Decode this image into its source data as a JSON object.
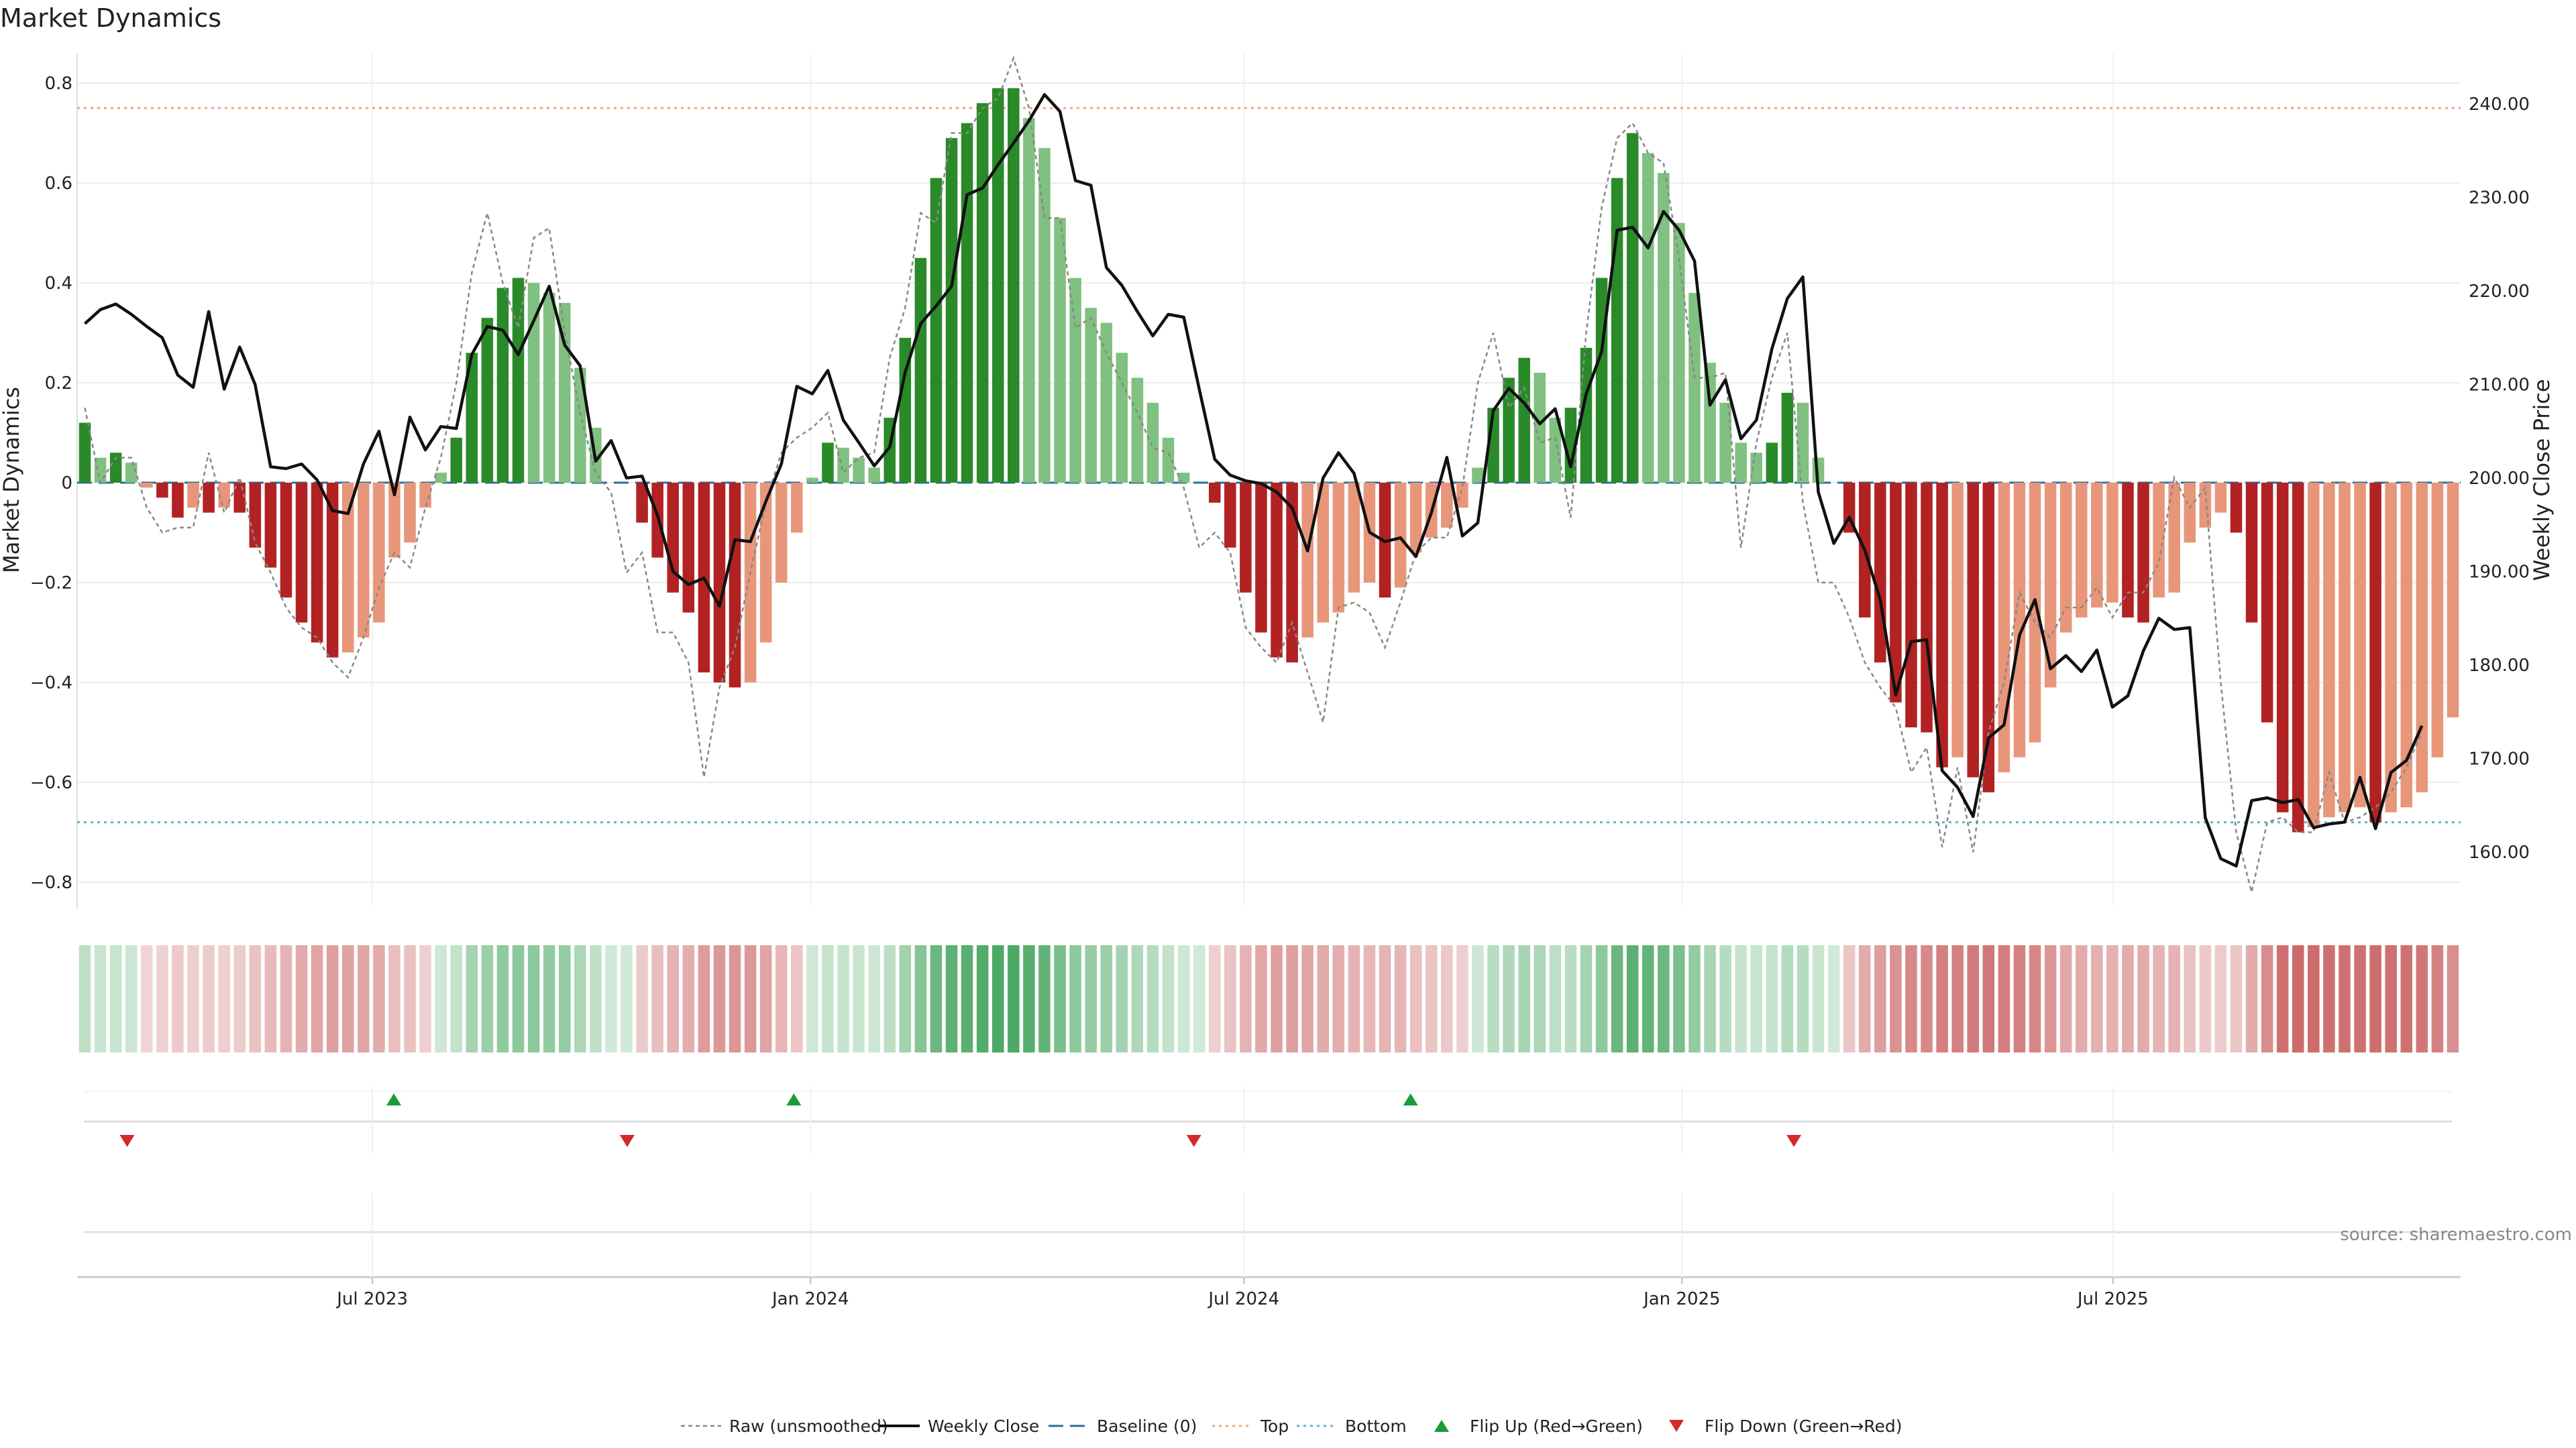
{
  "chart_data": {
    "type": "bar",
    "title": "Market Dynamics",
    "y_left_label": "Market Dynamics",
    "y_right_label": "Weekly Close Price",
    "ylim_left": [
      -0.85,
      0.8
    ],
    "ylim_right": [
      155,
      243
    ],
    "yticks_left": [
      0.8,
      0.6,
      0.4,
      0.2,
      0,
      -0.2,
      -0.4,
      -0.6,
      -0.8
    ],
    "yticks_left_labels": [
      "0.8",
      "0.6",
      "0.4",
      "0.2",
      "0",
      "−0.2",
      "−0.4",
      "−0.6",
      "−0.8"
    ],
    "yticks_right": [
      240,
      230,
      220,
      210,
      200,
      190,
      180,
      170,
      160
    ],
    "yticks_right_labels": [
      "240.00",
      "230.00",
      "220.00",
      "210.00",
      "200.00",
      "190.00",
      "180.00",
      "170.00",
      "160.00"
    ],
    "x_start": "2023-02-27",
    "x_end": "2025-11-24",
    "date_ticks": [
      {
        "date": "2023-07-01",
        "label": "Jul 2023"
      },
      {
        "date": "2024-01-01",
        "label": "Jan 2024"
      },
      {
        "date": "2024-07-01",
        "label": "Jul 2024"
      },
      {
        "date": "2025-01-01",
        "label": "Jan 2025"
      },
      {
        "date": "2025-07-01",
        "label": "Jul 2025"
      }
    ],
    "top_level": 0.75,
    "bottom_level": -0.68,
    "top_color": "#e8a882",
    "bottom_color": "#5bb7cc",
    "baseline_color": "#2a6f97",
    "grid": true,
    "legend_position": "bottom-center",
    "colors": {
      "pos_strong": "#2a8a2a",
      "pos_weak": "#80c080",
      "neg_strong": "#b22222",
      "neg_weak": "#e8967a",
      "close": "#111111",
      "raw": "#888888",
      "flip_up": "#1a9c3a",
      "flip_down": "#d22a2a"
    },
    "mds": [
      0.12,
      0.05,
      0.06,
      0.04,
      -0.01,
      -0.03,
      -0.07,
      -0.05,
      -0.06,
      -0.05,
      -0.06,
      -0.13,
      -0.17,
      -0.23,
      -0.28,
      -0.32,
      -0.35,
      -0.34,
      -0.31,
      -0.28,
      -0.15,
      -0.12,
      -0.05,
      0.02,
      0.09,
      0.26,
      0.33,
      0.39,
      0.41,
      0.4,
      0.38,
      0.36,
      0.23,
      0.11,
      0,
      0,
      -0.08,
      -0.15,
      -0.22,
      -0.26,
      -0.38,
      -0.4,
      -0.41,
      -0.4,
      -0.32,
      -0.2,
      -0.1,
      0.01,
      0.08,
      0.07,
      0.05,
      0.03,
      0.13,
      0.29,
      0.45,
      0.61,
      0.69,
      0.72,
      0.76,
      0.79,
      0.79,
      0.73,
      0.67,
      0.53,
      0.41,
      0.35,
      0.32,
      0.26,
      0.21,
      0.16,
      0.09,
      0.02,
      0,
      -0.04,
      -0.13,
      -0.22,
      -0.3,
      -0.35,
      -0.36,
      -0.31,
      -0.28,
      -0.26,
      -0.22,
      -0.2,
      -0.23,
      -0.21,
      -0.14,
      -0.11,
      -0.09,
      -0.05,
      0.03,
      0.15,
      0.21,
      0.25,
      0.22,
      0.13,
      0.15,
      0.27,
      0.41,
      0.61,
      0.7,
      0.66,
      0.62,
      0.52,
      0.38,
      0.24,
      0.16,
      0.08,
      0.06,
      0.08,
      0.18,
      0.16,
      0.05,
      0,
      -0.1,
      -0.27,
      -0.36,
      -0.44,
      -0.49,
      -0.5,
      -0.57,
      -0.55,
      -0.59,
      -0.62,
      -0.58,
      -0.55,
      -0.52,
      -0.41,
      -0.3,
      -0.27,
      -0.25,
      -0.24,
      -0.27,
      -0.28,
      -0.23,
      -0.22,
      -0.12,
      -0.09,
      -0.06,
      -0.1,
      -0.28,
      -0.48,
      -0.66,
      -0.7,
      -0.69,
      -0.67,
      -0.66,
      -0.65,
      -0.68,
      -0.66,
      -0.65,
      -0.62,
      -0.55,
      -0.47
    ],
    "close": [
      216.5,
      218,
      218.6,
      217.5,
      216.2,
      215,
      211,
      209.7,
      217.8,
      209.5,
      214,
      210,
      201.2,
      201,
      201.5,
      199.8,
      196.5,
      196.2,
      201.5,
      205,
      198.2,
      206.5,
      203,
      205.5,
      205.3,
      213.2,
      216.2,
      215.8,
      213.2,
      216.8,
      220.5,
      214.2,
      212,
      201.8,
      204,
      200,
      200.2,
      196,
      190,
      188.6,
      189.3,
      186.3,
      193.4,
      193.2,
      197.5,
      201.5,
      209.8,
      209,
      211.5,
      206.2,
      203.8,
      201.3,
      203.3,
      211.3,
      216.5,
      218.4,
      220.5,
      230.3,
      231,
      233.5,
      235.8,
      238.2,
      241,
      239.2,
      231.8,
      231.3,
      222.5,
      220.6,
      217.8,
      215.2,
      217.5,
      217.2,
      209.5,
      202,
      200.3,
      199.7,
      199.4,
      198.5,
      196.8,
      192.2,
      200,
      202.7,
      200.5,
      194.2,
      193.2,
      193.6,
      191.6,
      196.3,
      202.2,
      193.8,
      195.2,
      207.2,
      209.6,
      208,
      205.8,
      207.4,
      201.2,
      209,
      213.5,
      226.5,
      226.8,
      224.6,
      228.5,
      226.5,
      223.2,
      207.8,
      210.5,
      204.2,
      206.2,
      213.8,
      219.2,
      221.5,
      198.5,
      193,
      195.8,
      192.3,
      187,
      176.8,
      182.5,
      182.7,
      168.7,
      166.9,
      163.8,
      172.2,
      173.6,
      183.2,
      187,
      179.6,
      181,
      179.3,
      181.6,
      175.5,
      176.7,
      181.5,
      185,
      183.8,
      184,
      163.7,
      159.3,
      158.5,
      165.5,
      165.8,
      165.3,
      165.6,
      162.6,
      163,
      163.2,
      168,
      162.5,
      168.5,
      169.8,
      173.5
    ],
    "raw": [
      0.15,
      0.0,
      0.05,
      0.05,
      -0.05,
      -0.1,
      -0.09,
      -0.09,
      0.06,
      -0.06,
      0.01,
      -0.12,
      -0.18,
      -0.25,
      -0.29,
      -0.31,
      -0.36,
      -0.39,
      -0.31,
      -0.21,
      -0.14,
      -0.17,
      -0.05,
      0.05,
      0.2,
      0.42,
      0.54,
      0.4,
      0.31,
      0.49,
      0.51,
      0.3,
      0.14,
      0.02,
      -0.02,
      -0.18,
      -0.14,
      -0.3,
      -0.3,
      -0.36,
      -0.59,
      -0.41,
      -0.33,
      -0.18,
      -0.04,
      0.06,
      0.09,
      0.11,
      0.14,
      0.02,
      0.05,
      0.06,
      0.25,
      0.35,
      0.54,
      0.52,
      0.7,
      0.7,
      0.75,
      0.77,
      0.85,
      0.75,
      0.53,
      0.53,
      0.31,
      0.33,
      0.26,
      0.2,
      0.14,
      0.07,
      0.06,
      -0.01,
      -0.13,
      -0.1,
      -0.14,
      -0.29,
      -0.33,
      -0.36,
      -0.28,
      -0.38,
      -0.48,
      -0.25,
      -0.24,
      -0.26,
      -0.33,
      -0.24,
      -0.14,
      -0.11,
      -0.11,
      -0.01,
      0.2,
      0.3,
      0.15,
      0.19,
      0.08,
      0.09,
      -0.07,
      0.3,
      0.55,
      0.69,
      0.72,
      0.66,
      0.64,
      0.45,
      0.21,
      0.21,
      0.22,
      -0.13,
      0.08,
      0.21,
      0.3,
      -0.04,
      -0.2,
      -0.2,
      -0.27,
      -0.36,
      -0.41,
      -0.45,
      -0.58,
      -0.53,
      -0.73,
      -0.57,
      -0.74,
      -0.5,
      -0.4,
      -0.22,
      -0.28,
      -0.31,
      -0.25,
      -0.25,
      -0.21,
      -0.27,
      -0.22,
      -0.22,
      -0.16,
      0.01,
      -0.05,
      -0.01,
      -0.4,
      -0.7,
      -0.82,
      -0.68,
      -0.67,
      -0.7,
      -0.7,
      -0.58,
      -0.68,
      -0.67,
      -0.65,
      -0.62,
      -0.57,
      -0.5
    ],
    "flip_up": [
      "2023-07-10",
      "2023-12-25",
      "2024-09-09"
    ],
    "flip_down": [
      "2023-03-20",
      "2023-10-16",
      "2024-06-10",
      "2025-02-17"
    ],
    "source": "source: sharemaestro.com",
    "legend": [
      {
        "key": "raw",
        "label": "Raw (unsmoothed)"
      },
      {
        "key": "close",
        "label": "Weekly Close"
      },
      {
        "key": "baseline",
        "label": "Baseline (0)"
      },
      {
        "key": "top",
        "label": "Top"
      },
      {
        "key": "bottom",
        "label": "Bottom"
      },
      {
        "key": "flip_up",
        "label": "Flip Up (Red→Green)"
      },
      {
        "key": "flip_down",
        "label": "Flip Down (Green→Red)"
      }
    ]
  }
}
